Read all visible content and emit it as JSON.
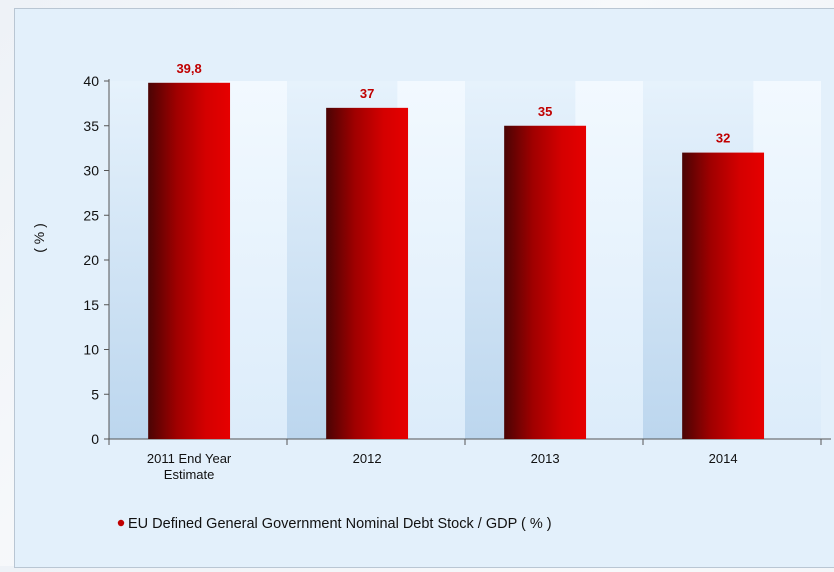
{
  "chart_data": {
    "type": "bar",
    "categories": [
      [
        "2011 End Year",
        "Estimate"
      ],
      [
        "2012"
      ],
      [
        "2013"
      ],
      [
        "2014"
      ]
    ],
    "values": [
      39.8,
      37,
      35,
      32
    ],
    "value_labels": [
      "39,8",
      "37",
      "35",
      "32"
    ],
    "title": "",
    "xlabel": "",
    "ylabel": "( % )",
    "ylim": [
      0,
      40
    ],
    "yticks": [
      0,
      5,
      10,
      15,
      20,
      25,
      30,
      35,
      40
    ],
    "grid": false,
    "legend_placement": "bottom-left",
    "series": [
      {
        "name": "EU Defined General Government Nominal  Debt Stock / GDP ( % )",
        "color": "#c00000"
      }
    ],
    "colors": {
      "bar_dark": "#5a0505",
      "bar_mid": "#c80000",
      "bar_light": "#e00000",
      "value_label": "#c00000",
      "axis": "#555555",
      "plot_band_light": "#eaf5fe",
      "plot_band_dark": "#c8dff3"
    }
  }
}
